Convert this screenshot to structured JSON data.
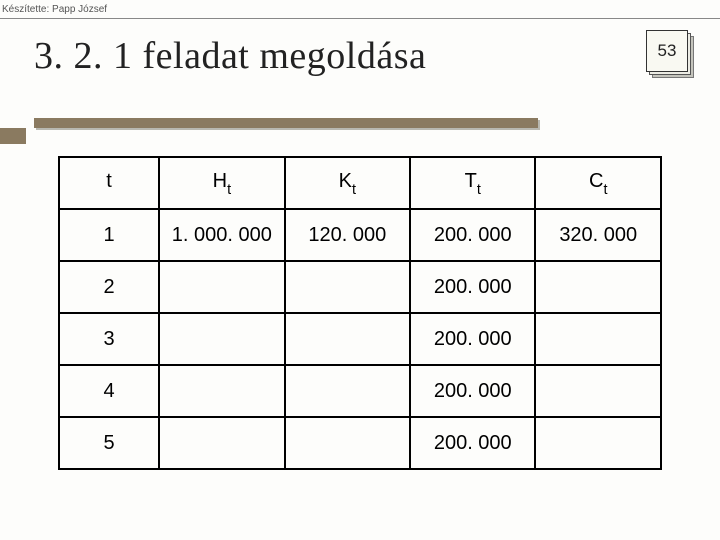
{
  "credit": "Készítette: Papp József",
  "title": "3. 2. 1 feladat megoldása",
  "page_number": "53",
  "accent_color": "#8a7a60",
  "background_color": "#fdfdfb",
  "table": {
    "columns": [
      {
        "label": "t",
        "sub": ""
      },
      {
        "label": "H",
        "sub": "t"
      },
      {
        "label": "K",
        "sub": "t"
      },
      {
        "label": "T",
        "sub": "t"
      },
      {
        "label": "C",
        "sub": "t"
      }
    ],
    "rows": [
      [
        "1",
        "1. 000. 000",
        "120. 000",
        "200. 000",
        "320. 000"
      ],
      [
        "2",
        "",
        "",
        "200. 000",
        ""
      ],
      [
        "3",
        "",
        "",
        "200. 000",
        ""
      ],
      [
        "4",
        "",
        "",
        "200. 000",
        ""
      ],
      [
        "5",
        "",
        "",
        "200. 000",
        ""
      ]
    ],
    "border_color": "#000000",
    "cell_fontsize": 20,
    "header_fontsize": 20
  }
}
